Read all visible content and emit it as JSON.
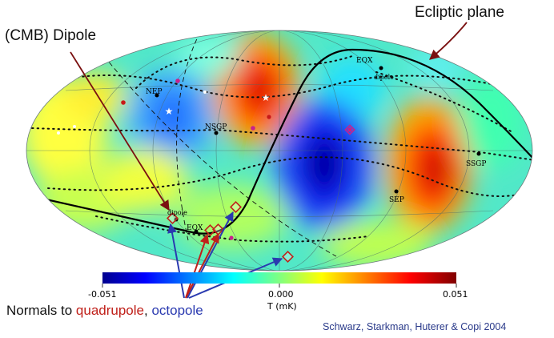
{
  "annotations": {
    "ecliptic_plane": "Ecliptic plane",
    "cmb_dipole": "(CMB) Dipole",
    "normals_prefix": "Normals to ",
    "normals_quadrupole": "quadrupole",
    "normals_sep": ", ",
    "normals_octopole": "octopole"
  },
  "map_labels": {
    "eqx_top": "EQX",
    "dipole_top": "dipole",
    "nep": "NEP",
    "nsgp": "NSGP",
    "ssgp": "SSGP",
    "sep": "SEP",
    "dipole_bottom": "dipole",
    "eqx_bottom": "EQX"
  },
  "colorbar": {
    "min_label": "-0.051",
    "mid_label": "0.000",
    "max_label": "0.051",
    "unit_label": "T (mK)",
    "min": -0.051,
    "max": 0.051
  },
  "credit": "Schwarz, Starkman, Huterer & Copi 2004",
  "colors": {
    "annotation_arrow": "#7a1010",
    "ecliptic_arrow": "#7a1010",
    "quadrupole": "#c0201a",
    "octopole": "#2a3ab0",
    "credit_text": "#2a3a8a",
    "ecliptic_line": "#000000"
  }
}
